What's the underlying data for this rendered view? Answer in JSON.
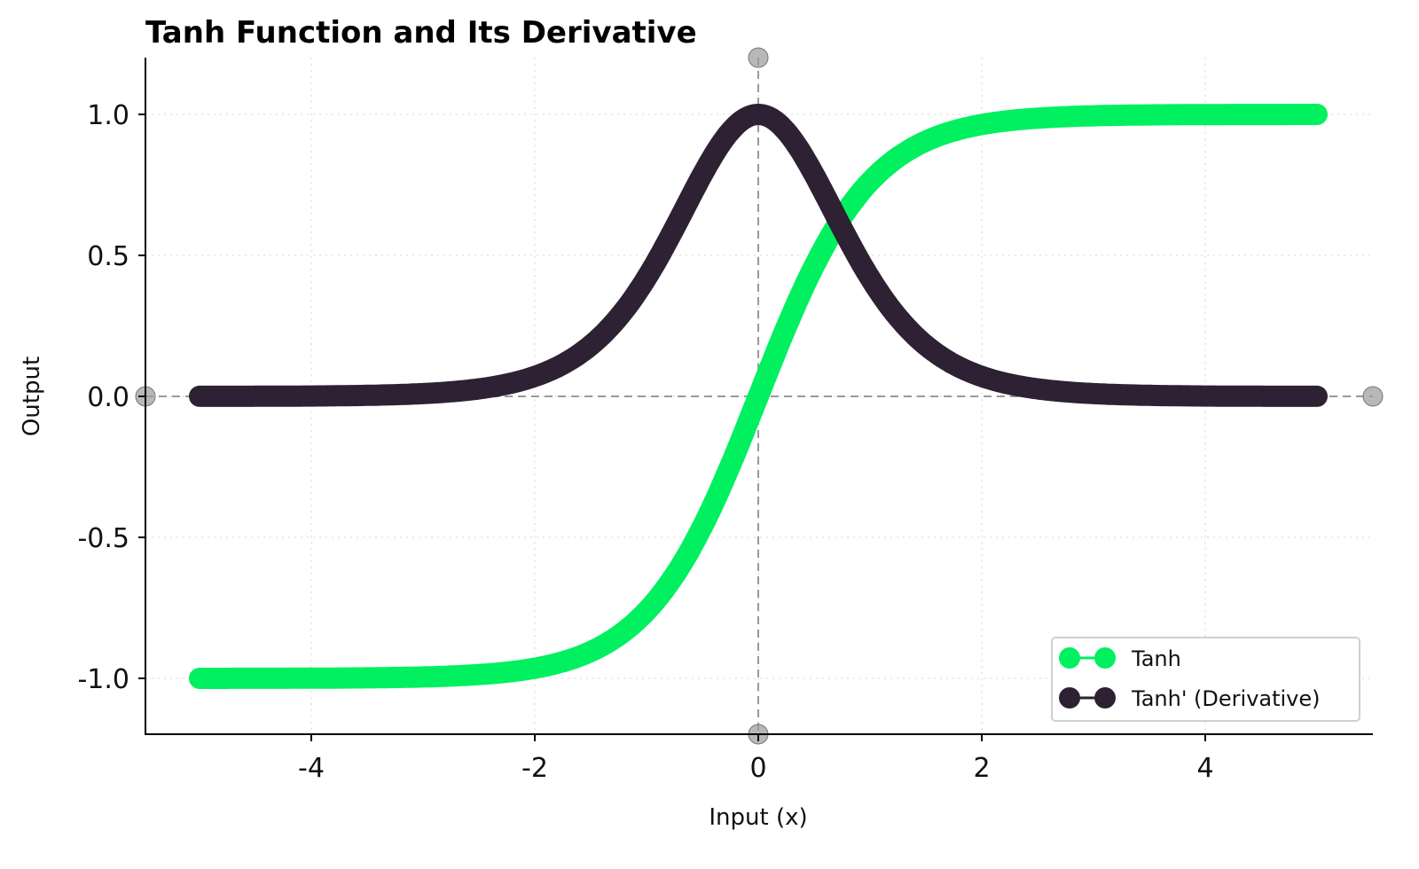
{
  "chart_data": {
    "type": "line",
    "title": "Tanh Function and Its Derivative",
    "xlabel": "Input (x)",
    "ylabel": "Output",
    "xlim": [
      -5.5,
      5.5
    ],
    "ylim": [
      -1.2,
      1.2
    ],
    "x_ticks": [
      -4,
      -2,
      0,
      2,
      4
    ],
    "x_tick_labels": [
      "-4",
      "-2",
      "0",
      "2",
      "4"
    ],
    "y_ticks": [
      -1.0,
      -0.5,
      0.0,
      0.5,
      1.0
    ],
    "y_tick_labels": [
      "-1.0",
      "-0.5",
      "0.0",
      "0.5",
      "1.0"
    ],
    "grid": true,
    "legend_position": "lower right",
    "reference_lines": [
      {
        "orientation": "horizontal",
        "value": 0,
        "style": "dashed",
        "color": "#999999"
      },
      {
        "orientation": "vertical",
        "value": 0,
        "style": "dashed",
        "color": "#999999"
      }
    ],
    "x": [
      -5,
      -4.5,
      -4,
      -3.5,
      -3,
      -2.5,
      -2,
      -1.5,
      -1,
      -0.75,
      -0.5,
      -0.25,
      0,
      0.25,
      0.5,
      0.75,
      1,
      1.5,
      2,
      2.5,
      3,
      3.5,
      4,
      4.5,
      5
    ],
    "series": [
      {
        "name": "Tanh",
        "color": "#00F060",
        "values": [
          -0.9999,
          -0.9998,
          -0.9993,
          -0.9982,
          -0.9951,
          -0.9866,
          -0.964,
          -0.9051,
          -0.7616,
          -0.6351,
          -0.4621,
          -0.2449,
          0,
          0.2449,
          0.4621,
          0.6351,
          0.7616,
          0.9051,
          0.964,
          0.9866,
          0.9951,
          0.9982,
          0.9993,
          0.9998,
          0.9999
        ]
      },
      {
        "name": "Tanh' (Derivative)",
        "color": "#2D2133",
        "values": [
          0.0002,
          0.0005,
          0.0013,
          0.0036,
          0.0099,
          0.0266,
          0.0707,
          0.1807,
          0.42,
          0.5966,
          0.7864,
          0.94,
          1.0,
          0.94,
          0.7864,
          0.5966,
          0.42,
          0.1807,
          0.0707,
          0.0266,
          0.0099,
          0.0036,
          0.0013,
          0.0005,
          0.0002
        ]
      }
    ]
  },
  "legend": {
    "items": [
      {
        "label": "Tanh",
        "color": "#00F060"
      },
      {
        "label": "Tanh' (Derivative)",
        "color": "#2D2133"
      }
    ]
  }
}
